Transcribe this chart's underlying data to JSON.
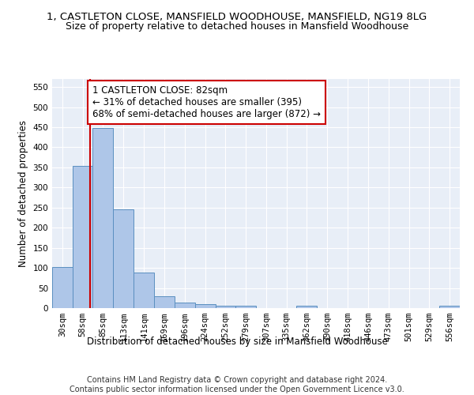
{
  "title": "1, CASTLETON CLOSE, MANSFIELD WOODHOUSE, MANSFIELD, NG19 8LG",
  "subtitle": "Size of property relative to detached houses in Mansfield Woodhouse",
  "xlabel": "Distribution of detached houses by size in Mansfield Woodhouse",
  "ylabel": "Number of detached properties",
  "footer_line1": "Contains HM Land Registry data © Crown copyright and database right 2024.",
  "footer_line2": "Contains public sector information licensed under the Open Government Licence v3.0.",
  "bar_edges": [
    30,
    58,
    85,
    113,
    141,
    169,
    196,
    224,
    252,
    279,
    307,
    335,
    362,
    390,
    418,
    446,
    473,
    501,
    529,
    556,
    584
  ],
  "bar_heights": [
    103,
    353,
    449,
    246,
    88,
    30,
    13,
    9,
    5,
    5,
    0,
    0,
    5,
    0,
    0,
    0,
    0,
    0,
    0,
    5
  ],
  "bar_color": "#aec6e8",
  "bar_edgecolor": "#5a8fc0",
  "vline_x": 82,
  "vline_color": "#cc0000",
  "annotation_line1": "1 CASTLETON CLOSE: 82sqm",
  "annotation_line2": "← 31% of detached houses are smaller (395)",
  "annotation_line3": "68% of semi-detached houses are larger (872) →",
  "annotation_box_color": "white",
  "annotation_box_edgecolor": "#cc0000",
  "ylim": [
    0,
    570
  ],
  "xlim": [
    30,
    584
  ],
  "background_color": "#e8eef7",
  "grid_color": "white",
  "title_fontsize": 9.5,
  "subtitle_fontsize": 9,
  "axis_label_fontsize": 8.5,
  "tick_fontsize": 7.5,
  "annotation_fontsize": 8.5,
  "footer_fontsize": 7
}
